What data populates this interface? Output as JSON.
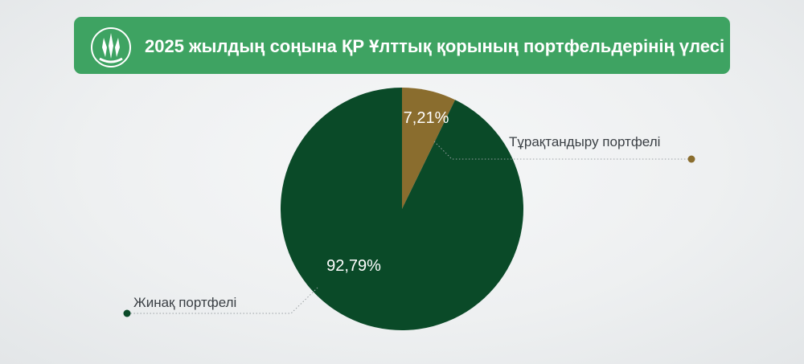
{
  "header": {
    "title": "2025 жылдың соңына ҚР Ұлттық қорының портфельдерінің үлесі",
    "background_color": "#3ea362",
    "logo_icon": "national-fund-emblem-icon"
  },
  "chart_data": {
    "type": "pie",
    "title": "2025 жылдың соңына ҚР Ұлттық қорының портфельдерінің үлесі",
    "slices": [
      {
        "label": "Тұрақтандыру портфелі",
        "value": 7.21,
        "display": "7,21%",
        "color": "#8a6d2e"
      },
      {
        "label": "Жинақ портфелі",
        "value": 92.79,
        "display": "92,79%",
        "color": "#0a4a28"
      }
    ],
    "legend": "callouts"
  }
}
